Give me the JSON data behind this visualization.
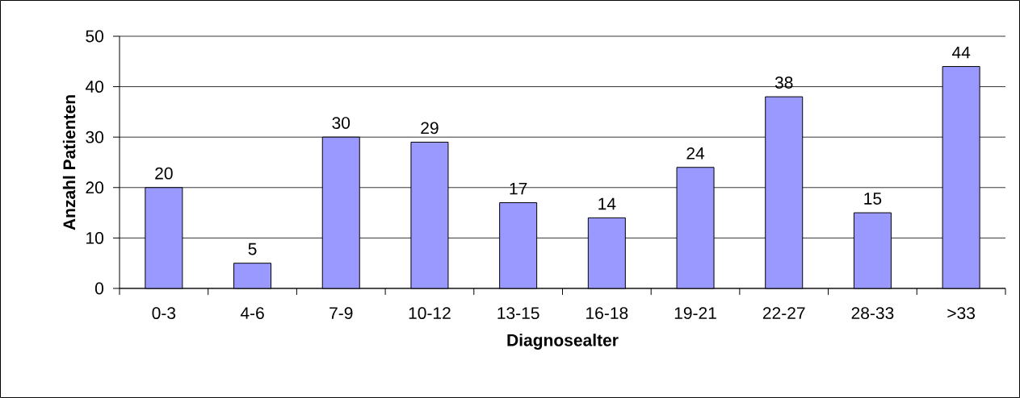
{
  "chart_data": {
    "type": "bar",
    "xlabel": "Diagnosealter",
    "ylabel": "Anzahl Patienten",
    "categories": [
      "0-3",
      "4-6",
      "7-9",
      "10-12",
      "13-15",
      "16-18",
      "19-21",
      "22-27",
      "28-33",
      ">33"
    ],
    "values": [
      20,
      5,
      30,
      29,
      17,
      14,
      24,
      38,
      15,
      44
    ],
    "color": "#9999ff",
    "ylim": [
      0,
      50
    ],
    "yticks": [
      0,
      10,
      20,
      30,
      40,
      50
    ],
    "grid": "y",
    "data_labels": true
  }
}
